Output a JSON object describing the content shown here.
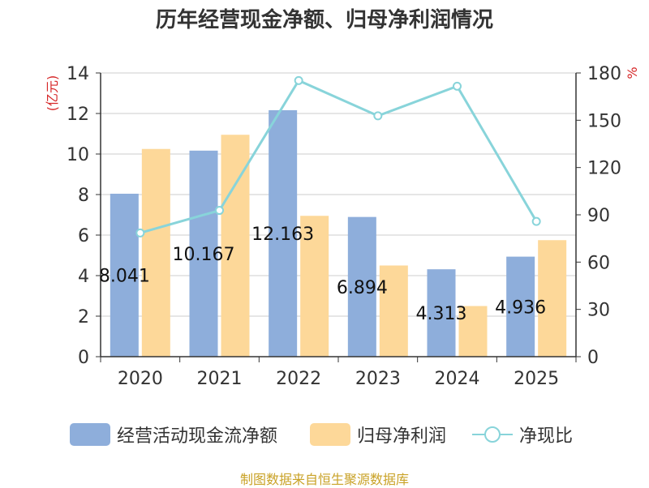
{
  "chart_data": {
    "type": "bar",
    "title": "历年经营现金净额、归母净利润情况",
    "categories": [
      "2020",
      "2021",
      "2022",
      "2023",
      "2024",
      "2025"
    ],
    "series": [
      {
        "name": "经营活动现金流净额",
        "type": "bar",
        "axis": "left",
        "values": [
          8.041,
          10.167,
          12.163,
          6.894,
          4.313,
          4.936
        ],
        "labels": [
          "8.041",
          "10.167",
          "12.163",
          "6.894",
          "4.313",
          "4.936"
        ]
      },
      {
        "name": "归母净利润",
        "type": "bar",
        "axis": "left",
        "values": [
          10.25,
          10.95,
          6.95,
          4.5,
          2.5,
          5.75
        ]
      },
      {
        "name": "净现比",
        "type": "line",
        "axis": "right",
        "values": [
          78.5,
          92.8,
          175.2,
          152.8,
          171.6,
          85.8
        ]
      }
    ],
    "ylabel_left": "(亿元)",
    "ylabel_right": "%",
    "ylim_left": [
      0,
      14
    ],
    "yticks_left": [
      "0",
      "2",
      "4",
      "6",
      "8",
      "10",
      "12",
      "14"
    ],
    "ylim_right": [
      0,
      180
    ],
    "yticks_right": [
      "0",
      "30",
      "60",
      "90",
      "120",
      "150",
      "180"
    ],
    "legend_position": "bottom",
    "grid": true
  },
  "colors": {
    "bar_cash": "#8eaedb",
    "bar_profit": "#fdd899",
    "line_ratio": "#88d4da",
    "axis": "#333333",
    "grid": "#cccccc",
    "unit_label": "#d62728",
    "source": "#c9a227"
  },
  "source": "制图数据来自恒生聚源数据库"
}
